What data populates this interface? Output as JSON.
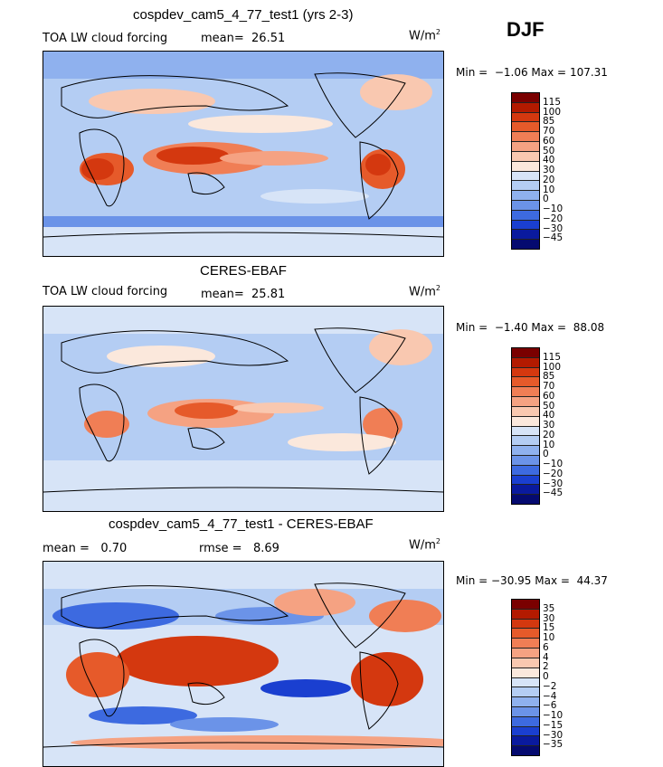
{
  "season": "DJF",
  "panels": [
    {
      "title": "cospdev_cam5_4_77_test1 (yrs 2-3)",
      "left_label": "TOA LW cloud forcing",
      "mean_label": "mean=",
      "mean_value": "26.51",
      "units_base": "W/m",
      "units_exp": "2",
      "min_label": "Min =",
      "min_value": "−1.06",
      "max_label": "Max =",
      "max_value": "107.31",
      "colorbar": {
        "labels": [
          "115",
          "100",
          "85",
          "70",
          "60",
          "50",
          "40",
          "30",
          "20",
          "10",
          "0",
          "−10",
          "−20",
          "−30",
          "−45"
        ],
        "colors": [
          "#7a0000",
          "#b31a00",
          "#d4380f",
          "#e65a2a",
          "#f07e55",
          "#f5a282",
          "#f9c8b0",
          "#fbe8dc",
          "#d7e4f7",
          "#b4cdf3",
          "#8fb1ee",
          "#6b93e8",
          "#3d6ae0",
          "#1a3fd0",
          "#0a1a9e",
          "#050a70"
        ]
      }
    },
    {
      "title": "CERES-EBAF",
      "left_label": "TOA LW cloud forcing",
      "mean_label": "mean=",
      "mean_value": "25.81",
      "units_base": "W/m",
      "units_exp": "2",
      "min_label": "Min =",
      "min_value": "−1.40",
      "max_label": "Max =",
      "max_value": "88.08",
      "colorbar": {
        "labels": [
          "115",
          "100",
          "85",
          "70",
          "60",
          "50",
          "40",
          "30",
          "20",
          "10",
          "0",
          "−10",
          "−20",
          "−30",
          "−45"
        ],
        "colors": [
          "#7a0000",
          "#b31a00",
          "#d4380f",
          "#e65a2a",
          "#f07e55",
          "#f5a282",
          "#f9c8b0",
          "#fbe8dc",
          "#d7e4f7",
          "#b4cdf3",
          "#8fb1ee",
          "#6b93e8",
          "#3d6ae0",
          "#1a3fd0",
          "#0a1a9e",
          "#050a70"
        ]
      }
    },
    {
      "title": "cospdev_cam5_4_77_test1 - CERES-EBAF",
      "mean_label": "mean =",
      "mean_value": "0.70",
      "rmse_label": "rmse =",
      "rmse_value": "8.69",
      "units_base": "W/m",
      "units_exp": "2",
      "min_label": "Min =",
      "min_value": "−30.95",
      "max_label": "Max =",
      "max_value": "44.37",
      "colorbar": {
        "labels": [
          "35",
          "30",
          "15",
          "10",
          "6",
          "4",
          "2",
          "0",
          "−2",
          "−4",
          "−6",
          "−10",
          "−15",
          "−30",
          "−35"
        ],
        "colors": [
          "#7a0000",
          "#b31a00",
          "#d4380f",
          "#e65a2a",
          "#f07e55",
          "#f5a282",
          "#f9c8b0",
          "#fbe8dc",
          "#d7e4f7",
          "#b4cdf3",
          "#8fb1ee",
          "#6b93e8",
          "#3d6ae0",
          "#1a3fd0",
          "#0a1a9e",
          "#050a70"
        ]
      }
    }
  ]
}
